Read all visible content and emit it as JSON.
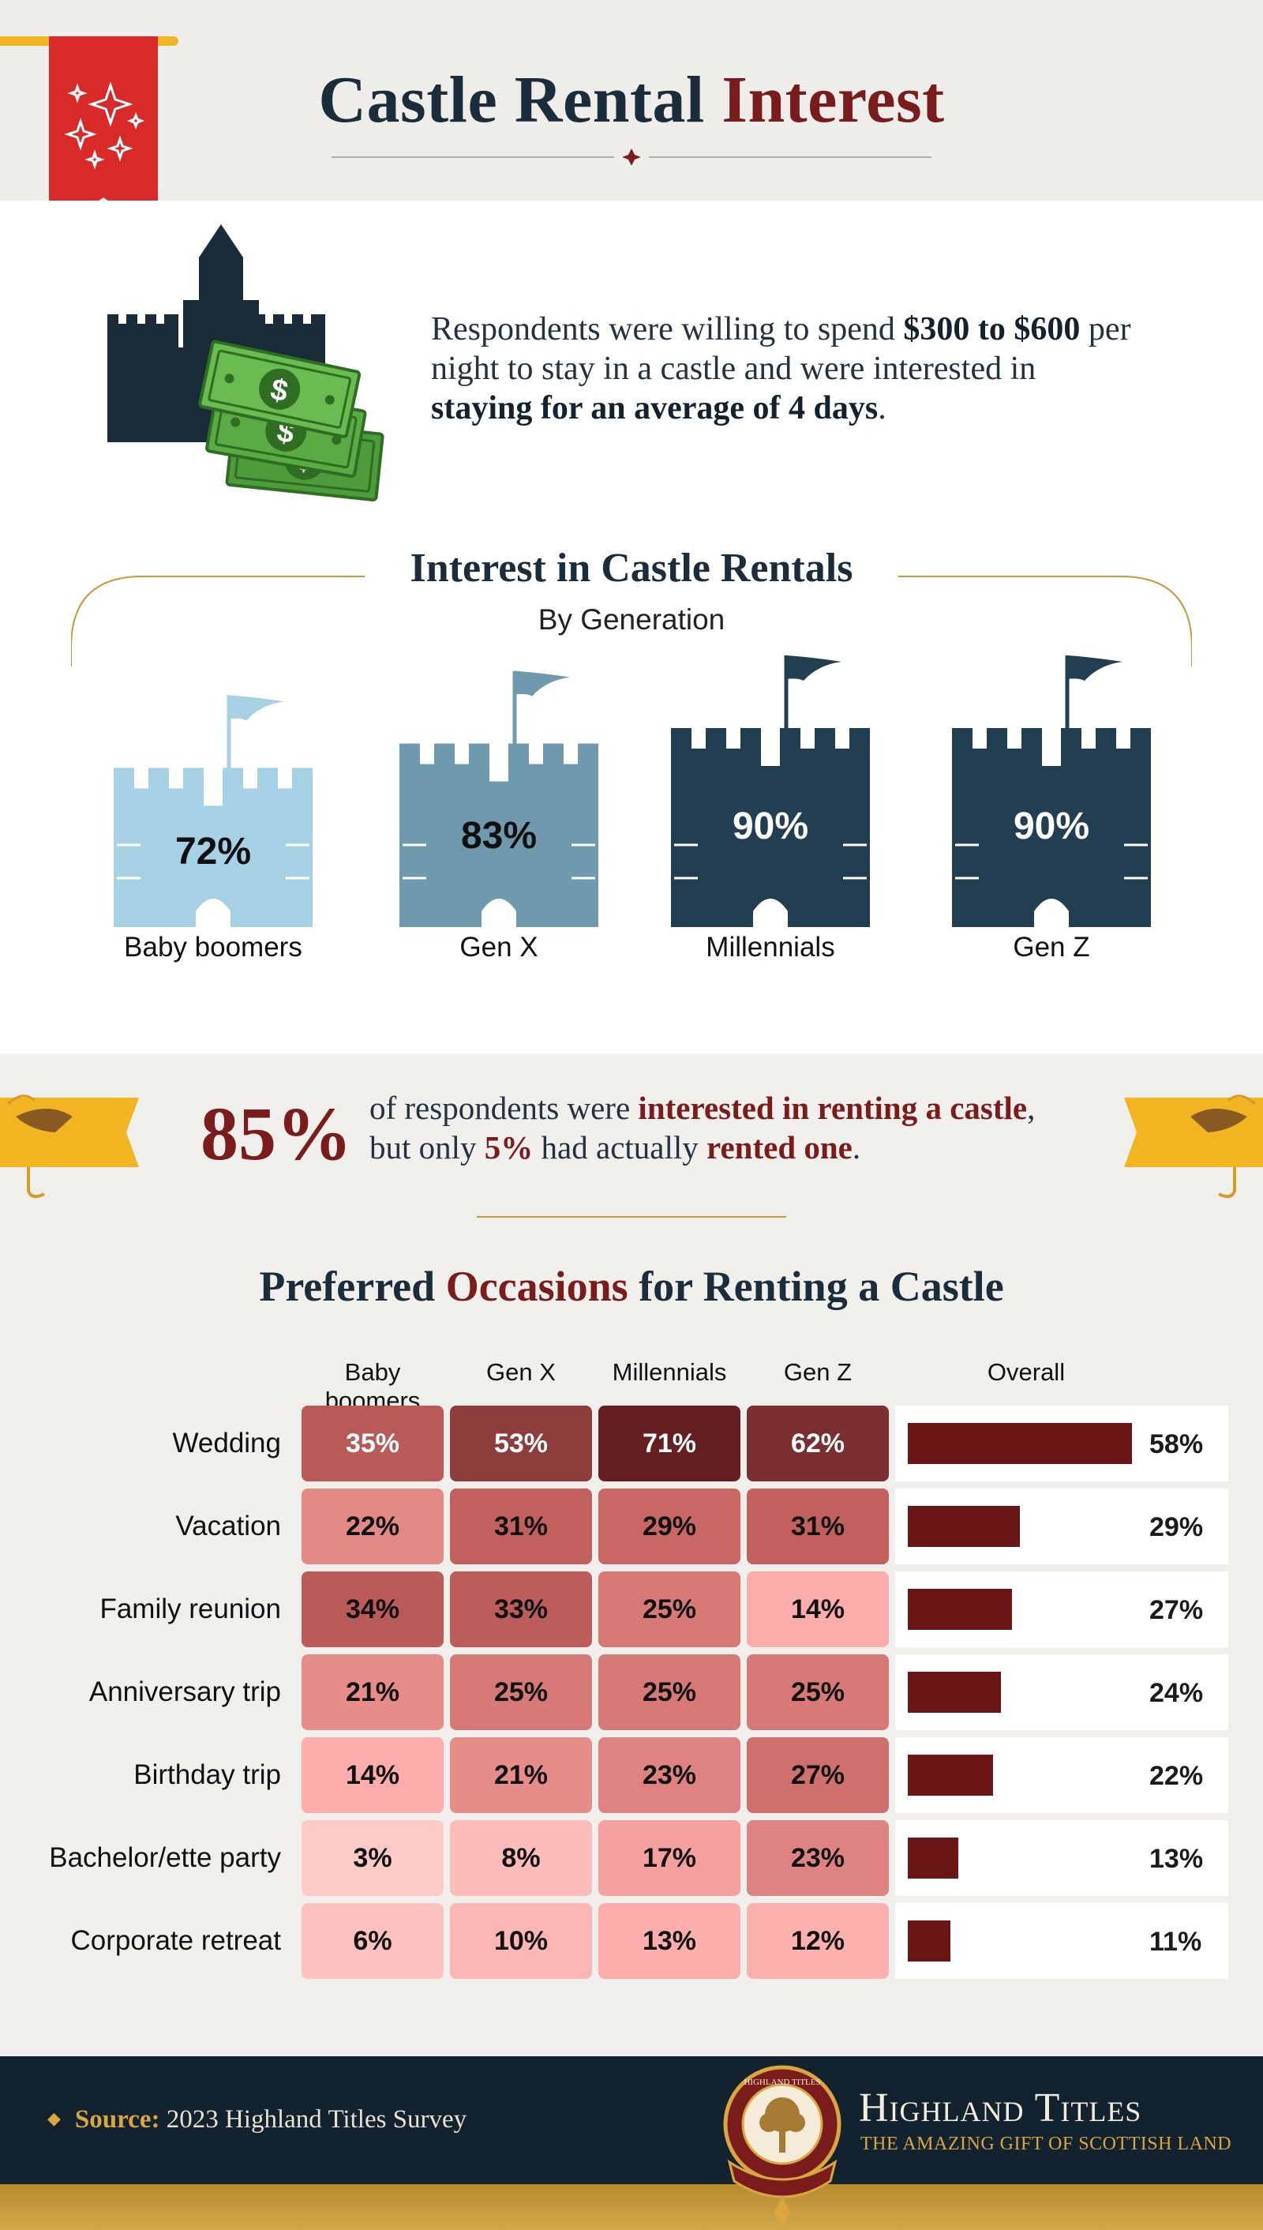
{
  "header": {
    "title_main": "Castle Rental",
    "title_accent": "Interest"
  },
  "intro": {
    "part1": "Respondents were willing to spend ",
    "price_range": "$300 to $600",
    "part2": " per night to stay in a castle and were interested in ",
    "stay_phrase": "staying for an average of 4 days",
    "part3": "."
  },
  "interest_section": {
    "title": "Interest in Castle Rentals",
    "subtitle": "By Generation"
  },
  "colors": {
    "navy": "#1b2c3a",
    "maroon": "#7b1c1c",
    "gold": "#f2b522",
    "castle_light": "#a6d0e4",
    "castle_mid": "#6f99ad",
    "castle_dark": "#223f52"
  },
  "stat": {
    "big_pct": "85%",
    "part1": "of respondents were ",
    "interested": "interested in renting a castle",
    "part2": ",",
    "part3": "but only ",
    "small_pct": "5%",
    "part4": " had actually ",
    "rented": "rented one",
    "part5": "."
  },
  "occasions": {
    "title_a": "Preferred ",
    "title_accent": "Occasions",
    "title_b": " for Renting a Castle",
    "overall_header": "Overall"
  },
  "chart_data": [
    {
      "type": "bar",
      "title": "Interest in Castle Rentals",
      "subtitle": "By Generation",
      "categories": [
        "Baby boomers",
        "Gen X",
        "Millennials",
        "Gen Z"
      ],
      "values": [
        72,
        83,
        90,
        90
      ],
      "labels": [
        "72%",
        "83%",
        "90%",
        "90%"
      ],
      "unit": "%"
    },
    {
      "type": "heatmap",
      "title": "Preferred Occasions for Renting a Castle",
      "columns": [
        "Baby boomers",
        "Gen X",
        "Millennials",
        "Gen Z"
      ],
      "rows": [
        "Wedding",
        "Vacation",
        "Family reunion",
        "Anniversary trip",
        "Birthday trip",
        "Bachelor/ette party",
        "Corporate retreat"
      ],
      "values": [
        [
          35,
          53,
          71,
          62
        ],
        [
          22,
          31,
          29,
          31
        ],
        [
          34,
          33,
          25,
          14
        ],
        [
          21,
          25,
          25,
          25
        ],
        [
          14,
          21,
          23,
          27
        ],
        [
          3,
          8,
          17,
          23
        ],
        [
          6,
          10,
          13,
          12
        ]
      ],
      "overall": {
        "type": "bar",
        "header": "Overall",
        "values": [
          58,
          29,
          27,
          24,
          22,
          13,
          11
        ]
      },
      "unit": "%"
    }
  ],
  "footer": {
    "source_label": "Source:",
    "source_text": "2023 Highland Titles Survey",
    "brand": "Highland Titles",
    "tagline": "THE AMAZING GIFT OF SCOTTISH LAND",
    "seal_text": "HIGHLAND TITLES"
  }
}
